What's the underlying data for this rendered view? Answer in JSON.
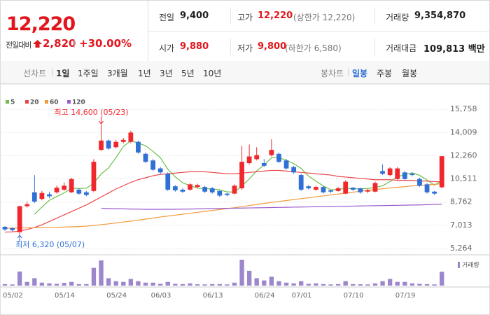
{
  "quote": {
    "price": "12,220",
    "change_label": "전일대비",
    "change": "2,820",
    "change_rate": "+30.00%",
    "items": [
      {
        "label": "전일",
        "value": "9,400"
      },
      {
        "label": "고가",
        "value": "12,220",
        "note": "(상한가 12,220)"
      },
      {
        "label": "거래량",
        "value": "9,354,870"
      },
      {
        "label": "시가",
        "value": "9,880"
      },
      {
        "label": "저가",
        "value": "9,800",
        "note": "(하한가 6,580)"
      },
      {
        "label": "거래대금",
        "value": "109,813 백만"
      }
    ]
  },
  "tabs": {
    "line_label": "선차트",
    "line_periods": [
      "1일",
      "1주일",
      "3개월",
      "1년",
      "3년",
      "5년",
      "10년"
    ],
    "candle_label": "봉차트",
    "candle_periods": [
      "일봉",
      "주봉",
      "월봉"
    ]
  },
  "chart_data": [
    {
      "type": "candlestick",
      "categories": [
        "05/02",
        null,
        null,
        null,
        null,
        null,
        null,
        "05/14",
        null,
        null,
        null,
        null,
        null,
        null,
        "05/24",
        null,
        null,
        null,
        null,
        null,
        "06/03",
        null,
        null,
        null,
        null,
        null,
        null,
        "06/13",
        null,
        null,
        null,
        null,
        null,
        null,
        "06/24",
        null,
        null,
        null,
        null,
        "07/01",
        null,
        null,
        null,
        null,
        null,
        null,
        "07/10",
        null,
        null,
        null,
        null,
        null,
        null,
        "07/19",
        null,
        null,
        null,
        null,
        null,
        null
      ],
      "open": [
        6900,
        6800,
        6500,
        8450,
        9500,
        9000,
        9350,
        9500,
        9700,
        9500,
        9700,
        9500,
        9600,
        12700,
        13400,
        12900,
        13300,
        13300,
        13300,
        12400,
        11900,
        11300,
        10900,
        9950,
        9700,
        9700,
        9900,
        9900,
        9800,
        9600,
        9400,
        9400,
        9800,
        11700,
        12000,
        11700,
        12300,
        12400,
        11900,
        11400,
        10800,
        9950,
        9700,
        9900,
        9650,
        9600,
        9400,
        9850,
        9800,
        9550,
        9550,
        11100,
        10800,
        10500,
        11000,
        10900,
        10500,
        10100,
        9550,
        9880
      ],
      "high": [
        6950,
        6850,
        8500,
        8800,
        10800,
        9600,
        9550,
        10000,
        10250,
        10600,
        9800,
        9600,
        12000,
        14600,
        13500,
        13450,
        13600,
        14150,
        13400,
        12500,
        12000,
        11400,
        11000,
        10050,
        9800,
        10200,
        10150,
        10000,
        9900,
        9650,
        9450,
        10100,
        13000,
        13100,
        12900,
        12000,
        13500,
        12500,
        12000,
        11500,
        10900,
        10050,
        10000,
        10000,
        9700,
        9900,
        10400,
        9900,
        9850,
        9750,
        10300,
        11600,
        11400,
        11400,
        11100,
        11000,
        10600,
        10200,
        9600,
        12220
      ],
      "low": [
        6600,
        6550,
        6320,
        8350,
        8700,
        8900,
        9050,
        9400,
        9600,
        9450,
        9300,
        9200,
        9500,
        12600,
        12700,
        12800,
        13200,
        13200,
        12400,
        11700,
        11100,
        10900,
        9600,
        9550,
        9450,
        9600,
        9800,
        9450,
        9400,
        9150,
        9200,
        9350,
        9700,
        11600,
        11900,
        11400,
        12200,
        11700,
        11200,
        10900,
        9600,
        9700,
        9600,
        9400,
        9450,
        9550,
        9350,
        9600,
        9400,
        9450,
        9500,
        10800,
        10700,
        10400,
        10400,
        10700,
        9900,
        9400,
        9300,
        9800
      ],
      "close": [
        6700,
        6650,
        8450,
        8600,
        8800,
        9450,
        9200,
        9850,
        10000,
        10500,
        9400,
        9300,
        11800,
        13400,
        12800,
        13300,
        13450,
        14000,
        12500,
        11800,
        11200,
        11000,
        9700,
        9650,
        9550,
        10100,
        10050,
        9550,
        9500,
        9250,
        9300,
        10000,
        11800,
        12200,
        12300,
        11500,
        12700,
        11800,
        11300,
        11000,
        9700,
        9800,
        9900,
        9500,
        9550,
        9800,
        10300,
        9700,
        9500,
        9650,
        10200,
        10900,
        11300,
        11300,
        10500,
        10800,
        10000,
        9500,
        9400,
        12220
      ],
      "up_color": "#f0282d",
      "down_color": "#2f6fd6",
      "series": [
        {
          "name": "5",
          "color": "#6cbf4a",
          "values": [
            null,
            null,
            null,
            null,
            7840,
            8390,
            8900,
            9180,
            9460,
            9800,
            9790,
            9810,
            10200,
            10880,
            11340,
            12120,
            12950,
            13390,
            13210,
            13010,
            12590,
            12100,
            11240,
            10670,
            10220,
            10000,
            9810,
            9780,
            9750,
            9690,
            9530,
            9520,
            9970,
            10510,
            11120,
            11560,
            12100,
            12100,
            11920,
            11660,
            11300,
            10720,
            10340,
            9980,
            9690,
            9710,
            9810,
            9770,
            9770,
            9790,
            9870,
            9990,
            10310,
            10670,
            10840,
            10960,
            10780,
            10420,
            10040,
            10384
          ]
        },
        {
          "name": "20",
          "color": "#e8474a",
          "values": [
            6500,
            6520,
            6580,
            6700,
            6850,
            7050,
            7300,
            7550,
            7800,
            8050,
            8300,
            8550,
            8850,
            9150,
            9450,
            9750,
            10000,
            10250,
            10450,
            10600,
            10750,
            10850,
            10900,
            10950,
            11000,
            11050,
            11050,
            11050,
            11000,
            10950,
            10900,
            10900,
            10950,
            11000,
            11050,
            11100,
            11150,
            11150,
            11100,
            11050,
            11000,
            10950,
            10900,
            10850,
            10800,
            10700,
            10650,
            10600,
            10550,
            10500,
            10450,
            10450,
            10450,
            10400,
            10400,
            10400,
            10350,
            10350,
            10300,
            10300
          ]
        },
        {
          "name": "60",
          "color": "#f39a3b",
          "values": [
            6800,
            6800,
            6810,
            6820,
            6830,
            6840,
            6850,
            6860,
            6880,
            6900,
            6920,
            6950,
            7000,
            7060,
            7120,
            7190,
            7260,
            7330,
            7400,
            7480,
            7560,
            7640,
            7710,
            7780,
            7850,
            7920,
            7990,
            8060,
            8130,
            8200,
            8270,
            8340,
            8420,
            8500,
            8580,
            8660,
            8740,
            8810,
            8880,
            8950,
            9020,
            9090,
            9160,
            9230,
            9300,
            9370,
            9440,
            9510,
            9580,
            9650,
            9710,
            9770,
            9830,
            9880,
            9930,
            9980,
            10020,
            10060,
            10100,
            10150
          ]
        },
        {
          "name": "120",
          "color": "#9b5bd0",
          "values": [
            null,
            null,
            null,
            null,
            null,
            null,
            null,
            null,
            null,
            null,
            null,
            null,
            null,
            8300,
            8280,
            8260,
            8250,
            8240,
            8230,
            8220,
            8220,
            8220,
            8220,
            8220,
            8230,
            8240,
            8250,
            8260,
            8270,
            8280,
            8290,
            8300,
            8310,
            8320,
            8330,
            8340,
            8350,
            8360,
            8370,
            8380,
            8390,
            8400,
            8410,
            8420,
            8430,
            8440,
            8450,
            8460,
            8470,
            8480,
            8490,
            8500,
            8510,
            8520,
            8530,
            8540,
            8550,
            8570,
            8585,
            8600
          ]
        }
      ],
      "ylim": [
        5000,
        17400
      ],
      "yticks": [
        {
          "value": 5264,
          "label": "5,264"
        },
        {
          "value": 7013,
          "label": "7,013"
        },
        {
          "value": 8762,
          "label": "8,762"
        },
        {
          "value": 10511,
          "label": "10,511"
        },
        {
          "value": 12260,
          "label": "12,260"
        },
        {
          "value": 14009,
          "label": "14,009"
        },
        {
          "value": 15758,
          "label": "15,758"
        }
      ],
      "grid": true,
      "annotations": {
        "high": "최고 14,600 (05/23)",
        "low": "최저 6,320 (05/07)"
      }
    },
    {
      "type": "bar",
      "series": [
        {
          "name": "거래량",
          "color": "#9c86cc",
          "values": [
            1000000,
            800000,
            9500000,
            2500000,
            5000000,
            2000000,
            1500000,
            1200000,
            1800000,
            2500000,
            1000000,
            1000000,
            12000000,
            17000000,
            5000000,
            3000000,
            2500000,
            4500000,
            3000000,
            2000000,
            2000000,
            1200000,
            2500000,
            1200000,
            1000000,
            1500000,
            900000,
            800000,
            1000000,
            1000000,
            800000,
            2000000,
            17500000,
            10000000,
            5000000,
            3500000,
            6000000,
            3000000,
            2000000,
            1500000,
            3000000,
            1200000,
            1500000,
            1000000,
            800000,
            1000000,
            3000000,
            1000000,
            900000,
            800000,
            1500000,
            3000000,
            4500000,
            2500000,
            2500000,
            1500000,
            1200000,
            1000000,
            800000,
            9354870
          ]
        }
      ]
    }
  ]
}
